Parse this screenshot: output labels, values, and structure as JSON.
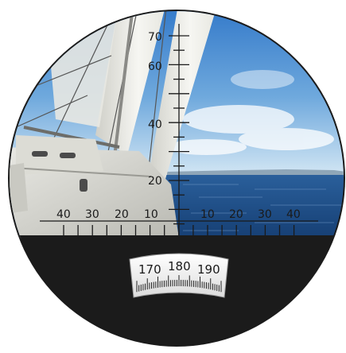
{
  "reticle": {
    "vertical_scale_labels": [
      "70",
      "60",
      "40",
      "20"
    ],
    "horizontal_left_labels": [
      "40",
      "30",
      "20",
      "10"
    ],
    "horizontal_right_labels": [
      "10",
      "20",
      "30",
      "40"
    ]
  },
  "compass": {
    "labels": [
      "170",
      "180",
      "190"
    ]
  },
  "colors": {
    "housing": "#1b1b1b",
    "sky_top": "#2f76c8",
    "sky_bottom": "#cfe4f3",
    "sea": "#1f4f8c",
    "sail": "#f2f2ee",
    "reticle": "#1a1a1a"
  },
  "icons": [
    "binocular-lens-frame",
    "sailboat-hull",
    "sail",
    "mast",
    "compass-dial"
  ]
}
